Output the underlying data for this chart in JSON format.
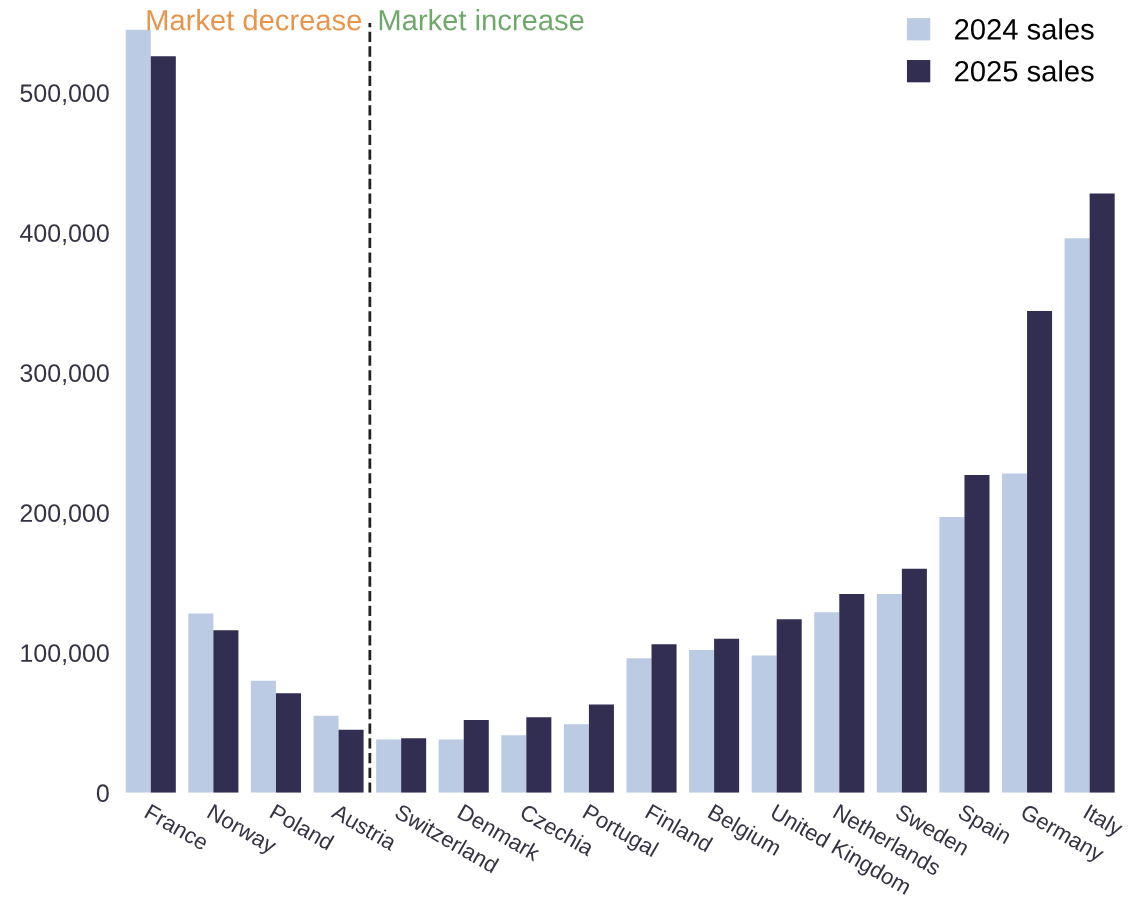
{
  "chart_data": {
    "type": "bar",
    "categories": [
      "France",
      "Norway",
      "Poland",
      "Austria",
      "Switzerland",
      "Denmark",
      "Czechia",
      "Portugal",
      "Finland",
      "Belgium",
      "United Kingdom",
      "Netherlands",
      "Sweden",
      "Spain",
      "Germany",
      "Italy"
    ],
    "series": [
      {
        "name": "2024 sales",
        "color": "#bccbe4",
        "values": [
          545000,
          128000,
          80000,
          55000,
          38000,
          38000,
          41000,
          49000,
          96000,
          102000,
          98000,
          129000,
          142000,
          197000,
          228000,
          396000
        ]
      },
      {
        "name": "2025 sales",
        "color": "#322e52",
        "values": [
          526000,
          116000,
          71000,
          45000,
          39000,
          52000,
          54000,
          63000,
          106000,
          110000,
          124000,
          142000,
          160000,
          227000,
          344000,
          428000
        ]
      }
    ],
    "ylim": [
      0,
      550000
    ],
    "yticks": [
      {
        "value": 0,
        "label": "0"
      },
      {
        "value": 100000,
        "label": "100,000"
      },
      {
        "value": 200000,
        "label": "200,000"
      },
      {
        "value": 300000,
        "label": "300,000"
      },
      {
        "value": 400000,
        "label": "400,000"
      },
      {
        "value": 500000,
        "label": "500,000"
      }
    ],
    "annotations": [
      "Market decrease",
      "Market increase"
    ],
    "legend": "top right",
    "grid": false
  }
}
